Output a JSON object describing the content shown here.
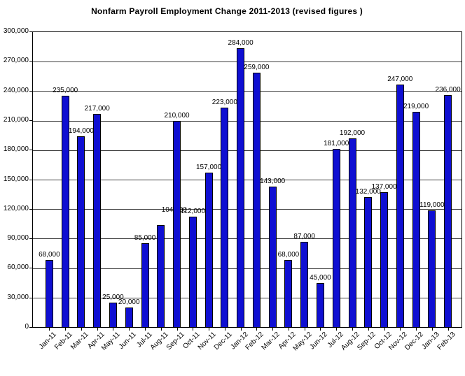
{
  "page": {
    "background_color": "#ffffff"
  },
  "chart_data": {
    "type": "bar",
    "title": "Nonfarm Payroll Employment Change 2011-2013  (revised figures )",
    "categories": [
      "Jan-11",
      "Feb-11",
      "Mar-11",
      "Apr-11",
      "May-11",
      "Jun-11",
      "Jul-11",
      "Aug-11",
      "Sep-11",
      "Oct-11",
      "Nov-11",
      "Dec-11",
      "Jan-12",
      "Feb-12",
      "Mar-12",
      "Apr-12",
      "May-12",
      "Jun-12",
      "Jul-12",
      "Aug-12",
      "Sep-12",
      "Oct-12",
      "Nov-12",
      "Dec-12",
      "Jan-13",
      "Feb-13"
    ],
    "values": [
      68000,
      235000,
      194000,
      217000,
      25000,
      20000,
      85000,
      104000,
      210000,
      112000,
      157000,
      223000,
      284000,
      259000,
      143000,
      68000,
      87000,
      45000,
      181000,
      192000,
      132000,
      137000,
      247000,
      219000,
      119000,
      236000
    ],
    "data_labels_visible": true,
    "xlabel": "",
    "ylabel": "",
    "ylim": [
      0,
      300000
    ],
    "ytick_step": 30000,
    "grid": true,
    "legend": false,
    "bar_color": "#0f0fd2",
    "bar_border_color": "#000000",
    "gridline_color": "#3c3c3c",
    "label_offsets": {
      "7": {
        "dx": 19,
        "dy": 14
      }
    }
  }
}
